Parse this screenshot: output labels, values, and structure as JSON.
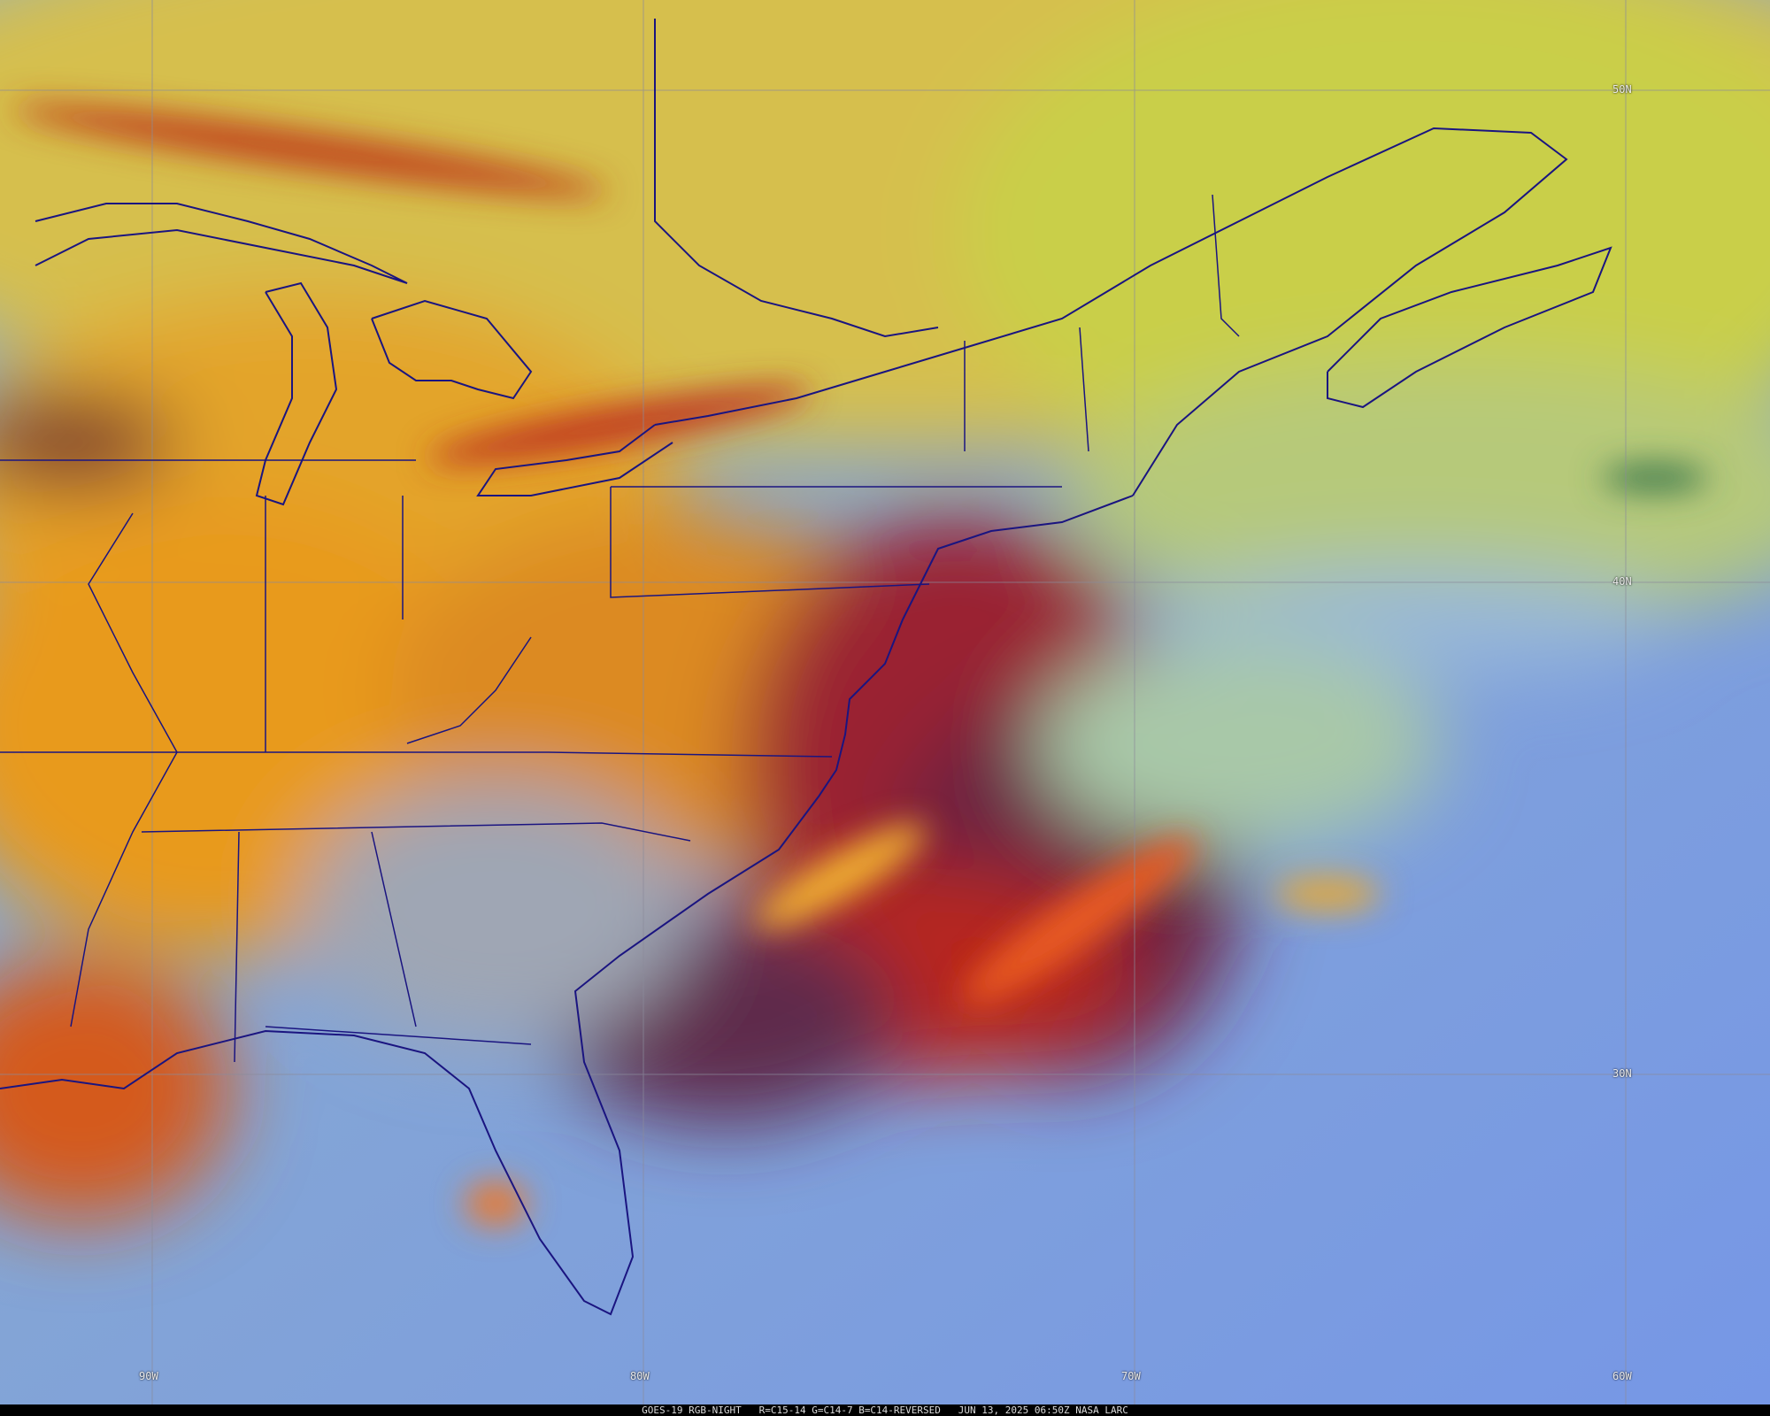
{
  "grid_labels": {
    "longitude": [
      "90W",
      "80W",
      "70W",
      "60W"
    ],
    "latitude": [
      "50N",
      "40N",
      "30N"
    ]
  },
  "footer": {
    "caption": "GOES-19 RGB-NIGHT   R=C15-14 G=C14-7 B=C14-REVERSED   JUN 13, 2025 06:50Z NASA LARC"
  }
}
